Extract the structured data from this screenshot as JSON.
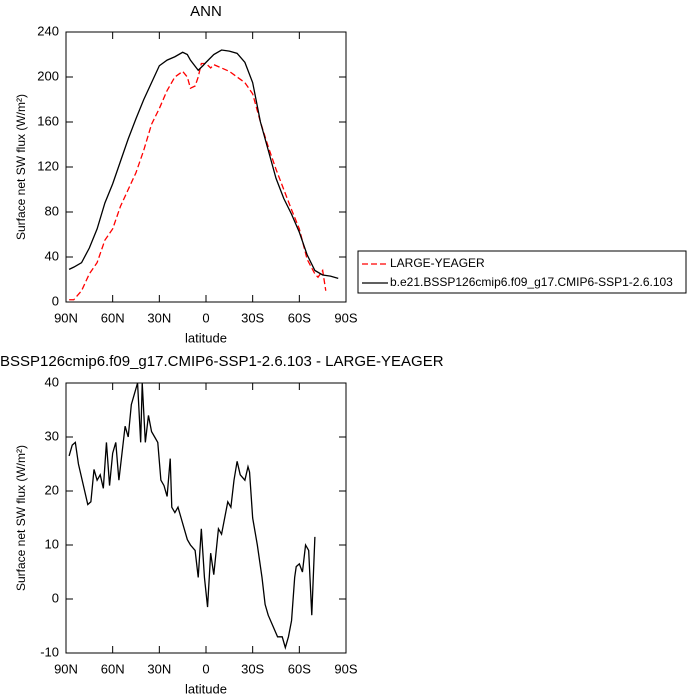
{
  "chart_data": [
    {
      "type": "line",
      "title": "ANN",
      "xlabel": "latitude",
      "ylabel": "Surface net SW flux (W/m²)",
      "xlim": [
        90,
        -90
      ],
      "xticks": [
        {
          "value": 90,
          "label": "90N"
        },
        {
          "value": 60,
          "label": "60N"
        },
        {
          "value": 30,
          "label": "30N"
        },
        0,
        {
          "value": -30,
          "label": "30S"
        },
        {
          "value": -60,
          "label": "60S"
        },
        {
          "value": -90,
          "label": "90S"
        }
      ],
      "ylim": [
        0,
        240
      ],
      "yticks": [
        0,
        40,
        80,
        120,
        160,
        200,
        240
      ],
      "legend": "right",
      "series": [
        {
          "name": "LARGE-YEAGER",
          "color": "#ff0000",
          "dash": true,
          "x": [
            88,
            85,
            80,
            75,
            70,
            65,
            60,
            55,
            50,
            45,
            40,
            35,
            30,
            25,
            20,
            15,
            12,
            10,
            7,
            5,
            3,
            0,
            -3,
            -5,
            -10,
            -15,
            -20,
            -25,
            -30,
            -35,
            -40,
            -45,
            -50,
            -55,
            -60,
            -65,
            -70,
            -72,
            -75,
            -77
          ],
          "values": [
            2,
            2,
            10,
            25,
            35,
            55,
            65,
            85,
            100,
            115,
            135,
            158,
            172,
            188,
            200,
            205,
            200,
            190,
            192,
            200,
            212,
            212,
            208,
            211,
            208,
            205,
            200,
            195,
            185,
            160,
            138,
            118,
            100,
            82,
            65,
            38,
            25,
            22,
            28,
            10
          ]
        },
        {
          "name": "b.e21.BSSP126cmip6.f09_g17.CMIP6-SSP1-2.6.103",
          "color": "#000000",
          "dash": false,
          "x": [
            88,
            85,
            80,
            75,
            70,
            65,
            60,
            55,
            50,
            45,
            40,
            35,
            30,
            25,
            20,
            15,
            12,
            10,
            5,
            2,
            0,
            -5,
            -10,
            -15,
            -20,
            -25,
            -30,
            -35,
            -40,
            -45,
            -50,
            -55,
            -60,
            -65,
            -70,
            -75,
            -80,
            -85
          ],
          "values": [
            29,
            31,
            35,
            48,
            65,
            88,
            105,
            125,
            145,
            163,
            180,
            195,
            210,
            215,
            218,
            222,
            220,
            215,
            206,
            210,
            213,
            220,
            224,
            223,
            221,
            213,
            195,
            160,
            135,
            110,
            92,
            78,
            62,
            42,
            28,
            24,
            23,
            21
          ]
        }
      ]
    },
    {
      "type": "line",
      "title": "BSSP126cmip6.f09_g17.CMIP6-SSP1-2.6.103 - LARGE-YEAGER",
      "xlabel": "latitude",
      "ylabel": "Surface net SW flux (W/m²)",
      "xlim": [
        90,
        -90
      ],
      "xticks": [
        {
          "value": 90,
          "label": "90N"
        },
        {
          "value": 60,
          "label": "60N"
        },
        {
          "value": 30,
          "label": "30N"
        },
        0,
        {
          "value": -30,
          "label": "30S"
        },
        {
          "value": -60,
          "label": "60S"
        },
        {
          "value": -90,
          "label": "90S"
        }
      ],
      "ylim": [
        -10,
        40
      ],
      "yticks": [
        -10,
        0,
        10,
        20,
        30,
        40
      ],
      "color": "#000000",
      "x": [
        88,
        86,
        84,
        82,
        78,
        76,
        74,
        72,
        70,
        68,
        66,
        64,
        62,
        60,
        58,
        56,
        54,
        52,
        50,
        48,
        46,
        44,
        42,
        41,
        39,
        37,
        35,
        33,
        31,
        29,
        27,
        25,
        23,
        22,
        20,
        18,
        16,
        14,
        12,
        10,
        7,
        5,
        3,
        1,
        -1,
        -3,
        -5,
        -8,
        -10,
        -12,
        -14,
        -16,
        -18,
        -20,
        -22,
        -25,
        -27,
        -28,
        -30,
        -33,
        -36,
        -38,
        -40,
        -43,
        -46,
        -49,
        -51,
        -53,
        -55,
        -57,
        -58,
        -60,
        -62,
        -64,
        -66,
        -68,
        -70
      ],
      "values": [
        26.5,
        28.5,
        29,
        25,
        20,
        17.5,
        18,
        24,
        22,
        23,
        20.5,
        29,
        21,
        27,
        29,
        22,
        27,
        32,
        30,
        36,
        38,
        40,
        29,
        40,
        29,
        34,
        31,
        30,
        29,
        22,
        21,
        19,
        26,
        17,
        16,
        17,
        15,
        13,
        11,
        10,
        9,
        4,
        13,
        4,
        -1.5,
        8.5,
        4.5,
        13,
        12,
        15,
        18,
        17,
        22,
        25.5,
        23,
        22,
        24.5,
        23.5,
        15,
        10,
        4,
        -1,
        -3,
        -5,
        -7,
        -7,
        -9,
        -7,
        -4,
        4,
        6,
        6.5,
        5,
        10,
        9,
        -3,
        11.5
      ]
    }
  ]
}
